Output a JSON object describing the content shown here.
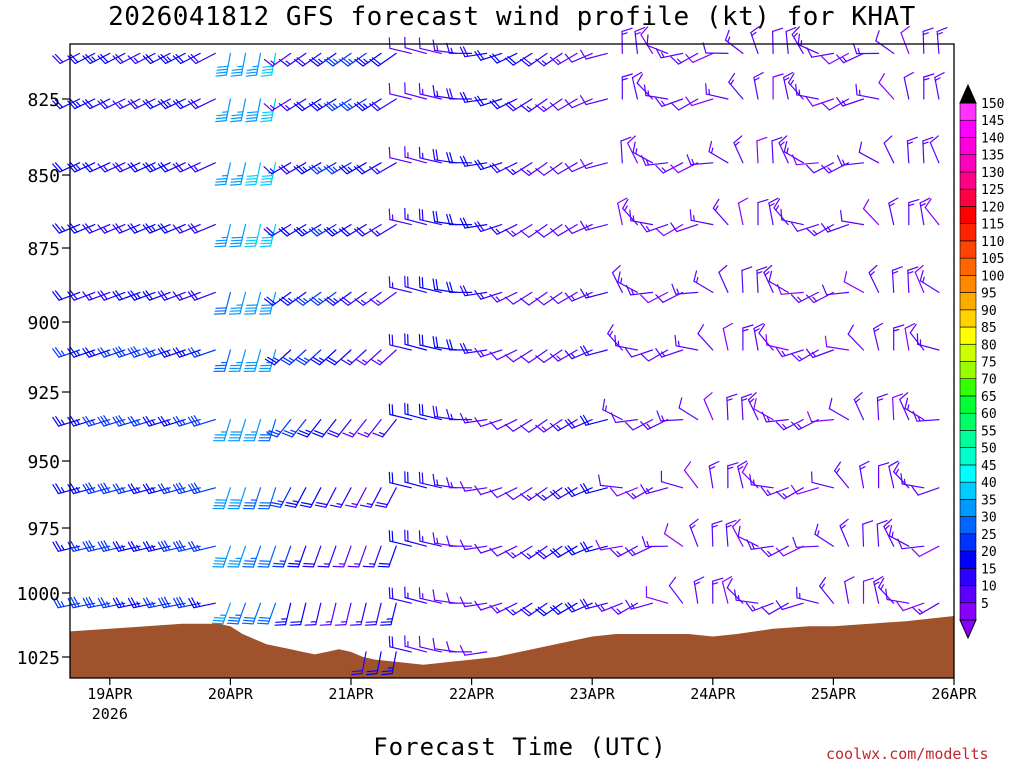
{
  "chart_data": {
    "type": "wind_barb_profile",
    "title": "2026041812 GFS forecast wind profile (kt) for KHAT",
    "xlabel": "Forecast Time (UTC)",
    "ylabel": "",
    "x_tick_labels": [
      "19APR",
      "20APR",
      "21APR",
      "22APR",
      "23APR",
      "24APR",
      "25APR",
      "26APR"
    ],
    "x_year_label": "2026",
    "y_ticks": [
      825,
      850,
      875,
      900,
      925,
      950,
      975,
      1000,
      1025
    ],
    "y_tick_labels": [
      "825",
      "850",
      "875",
      "900",
      "925",
      "950",
      "975",
      "1000",
      "1025"
    ],
    "ylim_hPa": [
      1034,
      809
    ],
    "xlim_days_from_19APR": [
      -0.33,
      7.0
    ],
    "pressure_levels": [
      810,
      825,
      846,
      867,
      890,
      910,
      935,
      960,
      982,
      1004,
      1023
    ],
    "colorbar": {
      "label_unit": "kt",
      "levels": [
        5,
        10,
        15,
        20,
        25,
        30,
        35,
        40,
        45,
        50,
        55,
        60,
        65,
        70,
        75,
        80,
        85,
        90,
        95,
        100,
        105,
        110,
        115,
        120,
        125,
        130,
        135,
        140,
        145,
        150
      ],
      "colors": [
        "#8a00ff",
        "#5a00ff",
        "#2a00ff",
        "#0000ff",
        "#0033ff",
        "#0066ff",
        "#0099ff",
        "#00ccff",
        "#00ffff",
        "#00ffcc",
        "#00ff99",
        "#00ff66",
        "#00ff33",
        "#33ff00",
        "#99ff00",
        "#ccff00",
        "#ffff00",
        "#ffd200",
        "#ffaa00",
        "#ff8800",
        "#ff6600",
        "#ff4400",
        "#ff2200",
        "#ff0000",
        "#ff0044",
        "#ff0088",
        "#ff00bb",
        "#ff00dd",
        "#ff00ff",
        "#ff33ff"
      ]
    },
    "terrain_surface_pressure_hPa": [
      [
        -0.33,
        1015
      ],
      [
        0,
        1014
      ],
      [
        0.3,
        1013
      ],
      [
        0.6,
        1012
      ],
      [
        0.9,
        1012
      ],
      [
        1.0,
        1013
      ],
      [
        1.1,
        1016
      ],
      [
        1.2,
        1018
      ],
      [
        1.3,
        1020
      ],
      [
        1.4,
        1021
      ],
      [
        1.5,
        1022
      ],
      [
        1.6,
        1023
      ],
      [
        1.7,
        1024
      ],
      [
        1.8,
        1023
      ],
      [
        1.9,
        1022
      ],
      [
        2.0,
        1023
      ],
      [
        2.1,
        1025
      ],
      [
        2.2,
        1026
      ],
      [
        2.4,
        1027
      ],
      [
        2.6,
        1028
      ],
      [
        2.8,
        1027
      ],
      [
        3.0,
        1026
      ],
      [
        3.2,
        1025
      ],
      [
        3.4,
        1023
      ],
      [
        3.6,
        1021
      ],
      [
        3.8,
        1019
      ],
      [
        4.0,
        1017
      ],
      [
        4.2,
        1016
      ],
      [
        4.5,
        1016
      ],
      [
        4.8,
        1016
      ],
      [
        5.0,
        1017
      ],
      [
        5.2,
        1016
      ],
      [
        5.5,
        1014
      ],
      [
        5.8,
        1013
      ],
      [
        6.0,
        1013
      ],
      [
        6.3,
        1012
      ],
      [
        6.6,
        1011
      ],
      [
        6.8,
        1010
      ],
      [
        7.0,
        1009
      ]
    ],
    "wind_profile_description_text": ""
  },
  "labels": {
    "title": "2026041812 GFS forecast wind profile (kt) for KHAT",
    "xtitle": "Forecast Time (UTC)",
    "credit": "coolwx.com/modelts"
  }
}
